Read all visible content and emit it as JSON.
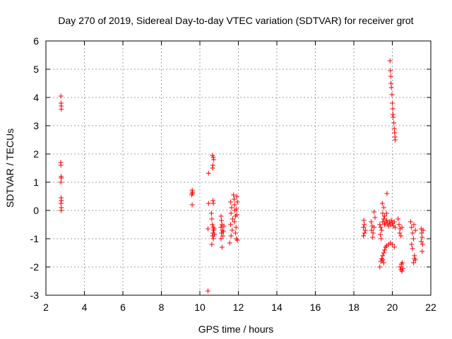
{
  "chart_data": {
    "type": "scatter",
    "title": "Day 270 of 2019, Sidereal Day-to-day VTEC variation (SDTVAR) for receiver grot",
    "xlabel": "GPS time / hours",
    "ylabel": "SDTVAR / TECUs",
    "xlim": [
      2,
      22
    ],
    "ylim": [
      -3,
      6
    ],
    "xticks": [
      2,
      4,
      6,
      8,
      10,
      12,
      14,
      16,
      18,
      20,
      22
    ],
    "yticks": [
      -3,
      -2,
      -1,
      0,
      1,
      2,
      3,
      4,
      5,
      6
    ],
    "grid": true,
    "marker": "+",
    "color": "#ff0000",
    "points": [
      [
        2.78,
        4.05
      ],
      [
        2.79,
        3.8
      ],
      [
        2.8,
        3.7
      ],
      [
        2.8,
        3.58
      ],
      [
        2.77,
        1.7
      ],
      [
        2.78,
        1.6
      ],
      [
        2.79,
        1.2
      ],
      [
        2.8,
        1.15
      ],
      [
        2.78,
        1.0
      ],
      [
        2.79,
        0.45
      ],
      [
        2.8,
        0.35
      ],
      [
        2.78,
        0.25
      ],
      [
        2.8,
        0.1
      ],
      [
        2.79,
        0.0
      ],
      [
        9.6,
        0.72
      ],
      [
        9.62,
        0.65
      ],
      [
        9.6,
        0.6
      ],
      [
        9.58,
        0.55
      ],
      [
        9.6,
        0.2
      ],
      [
        10.42,
        -2.85
      ],
      [
        10.45,
        1.32
      ],
      [
        10.45,
        0.25
      ],
      [
        10.42,
        -0.65
      ],
      [
        10.65,
        1.95
      ],
      [
        10.7,
        1.88
      ],
      [
        10.72,
        1.8
      ],
      [
        10.68,
        1.6
      ],
      [
        10.66,
        1.5
      ],
      [
        10.68,
        0.35
      ],
      [
        10.7,
        0.25
      ],
      [
        10.6,
        -0.1
      ],
      [
        10.62,
        -0.3
      ],
      [
        10.65,
        -0.5
      ],
      [
        10.7,
        -0.6
      ],
      [
        10.72,
        -0.7
      ],
      [
        10.68,
        -0.8
      ],
      [
        10.66,
        -0.9
      ],
      [
        10.7,
        -1.0
      ],
      [
        10.62,
        -1.2
      ],
      [
        10.74,
        -0.65
      ],
      [
        10.76,
        -0.85
      ],
      [
        11.1,
        -0.2
      ],
      [
        11.12,
        -0.35
      ],
      [
        11.15,
        -0.5
      ],
      [
        11.1,
        -0.6
      ],
      [
        11.18,
        -0.7
      ],
      [
        11.12,
        -0.8
      ],
      [
        11.2,
        -0.9
      ],
      [
        11.1,
        -1.0
      ],
      [
        11.15,
        -1.3
      ],
      [
        11.25,
        -0.55
      ],
      [
        11.22,
        -0.75
      ],
      [
        11.6,
        0.3
      ],
      [
        11.65,
        0.1
      ],
      [
        11.62,
        -0.1
      ],
      [
        11.7,
        -0.3
      ],
      [
        11.6,
        -0.5
      ],
      [
        11.68,
        -0.7
      ],
      [
        11.62,
        -0.9
      ],
      [
        11.55,
        -1.15
      ],
      [
        11.75,
        0.55
      ],
      [
        11.78,
        0.4
      ],
      [
        11.8,
        0.2
      ],
      [
        11.82,
        0.0
      ],
      [
        11.85,
        -0.2
      ],
      [
        11.8,
        -0.4
      ],
      [
        11.88,
        -0.6
      ],
      [
        11.85,
        -0.8
      ],
      [
        11.9,
        -1.0
      ],
      [
        11.92,
        0.5
      ],
      [
        11.95,
        0.3
      ],
      [
        11.9,
        0.05
      ],
      [
        11.92,
        -0.15
      ],
      [
        11.95,
        -1.05
      ],
      [
        18.52,
        -0.35
      ],
      [
        18.55,
        -0.5
      ],
      [
        18.5,
        -0.6
      ],
      [
        18.6,
        -0.7
      ],
      [
        18.55,
        -0.8
      ],
      [
        18.5,
        -0.9
      ],
      [
        18.9,
        -0.4
      ],
      [
        18.95,
        -0.55
      ],
      [
        18.92,
        -0.7
      ],
      [
        19.0,
        -0.8
      ],
      [
        19.05,
        -0.6
      ],
      [
        18.98,
        -0.95
      ],
      [
        19.05,
        -0.05
      ],
      [
        19.1,
        -0.25
      ],
      [
        19.35,
        -0.5
      ],
      [
        19.4,
        -0.6
      ],
      [
        19.45,
        -0.7
      ],
      [
        19.38,
        -0.85
      ],
      [
        19.42,
        -1.0
      ],
      [
        19.5,
        -0.4
      ],
      [
        19.55,
        -0.3
      ],
      [
        19.5,
        -0.1
      ],
      [
        19.55,
        0.1
      ],
      [
        19.48,
        0.25
      ],
      [
        19.6,
        -0.5
      ],
      [
        19.65,
        -0.45
      ],
      [
        19.7,
        -0.35
      ],
      [
        19.75,
        -0.45
      ],
      [
        19.8,
        -0.55
      ],
      [
        19.85,
        -0.4
      ],
      [
        19.9,
        -0.5
      ],
      [
        19.95,
        -0.35
      ],
      [
        20.0,
        -0.45
      ],
      [
        20.05,
        -0.55
      ],
      [
        20.1,
        -0.4
      ],
      [
        20.15,
        -0.6
      ],
      [
        19.72,
        0.6
      ],
      [
        19.6,
        -0.2
      ],
      [
        19.7,
        -0.1
      ],
      [
        19.35,
        -2.0
      ],
      [
        19.4,
        -1.8
      ],
      [
        19.45,
        -1.7
      ],
      [
        19.5,
        -1.6
      ],
      [
        19.55,
        -1.5
      ],
      [
        19.6,
        -1.4
      ],
      [
        19.65,
        -1.3
      ],
      [
        19.7,
        -1.25
      ],
      [
        19.8,
        -1.2
      ],
      [
        19.9,
        -1.15
      ],
      [
        20.0,
        -1.2
      ],
      [
        20.1,
        -1.3
      ],
      [
        19.5,
        -1.75
      ],
      [
        19.55,
        -1.85
      ],
      [
        19.88,
        5.3
      ],
      [
        19.9,
        4.95
      ],
      [
        19.92,
        4.75
      ],
      [
        19.93,
        4.5
      ],
      [
        19.95,
        4.35
      ],
      [
        19.98,
        4.1
      ],
      [
        20.0,
        3.8
      ],
      [
        20.02,
        3.6
      ],
      [
        20.03,
        3.4
      ],
      [
        20.05,
        3.3
      ],
      [
        20.08,
        3.1
      ],
      [
        20.1,
        2.9
      ],
      [
        20.12,
        2.75
      ],
      [
        20.14,
        2.6
      ],
      [
        20.15,
        2.5
      ],
      [
        20.3,
        -0.3
      ],
      [
        20.35,
        -0.5
      ],
      [
        20.4,
        -0.65
      ],
      [
        20.38,
        -0.8
      ],
      [
        20.45,
        -0.9
      ],
      [
        20.5,
        -0.6
      ],
      [
        20.4,
        -2.0
      ],
      [
        20.45,
        -2.1
      ],
      [
        20.5,
        -2.15
      ],
      [
        20.55,
        -2.05
      ],
      [
        20.48,
        -1.9
      ],
      [
        20.52,
        -1.85
      ],
      [
        20.95,
        -0.4
      ],
      [
        21.0,
        -0.6
      ],
      [
        21.05,
        -0.8
      ],
      [
        21.1,
        -1.0
      ],
      [
        21.0,
        -1.2
      ],
      [
        21.05,
        -1.35
      ],
      [
        21.12,
        -0.5
      ],
      [
        21.15,
        -1.6
      ],
      [
        21.2,
        -1.75
      ],
      [
        21.1,
        -1.85
      ],
      [
        21.15,
        -1.7
      ],
      [
        21.2,
        -0.7
      ],
      [
        21.5,
        -0.65
      ],
      [
        21.52,
        -0.8
      ],
      [
        21.55,
        -0.95
      ],
      [
        21.5,
        -1.1
      ],
      [
        21.58,
        -1.2
      ],
      [
        21.55,
        -1.45
      ],
      [
        21.6,
        -0.7
      ]
    ]
  }
}
